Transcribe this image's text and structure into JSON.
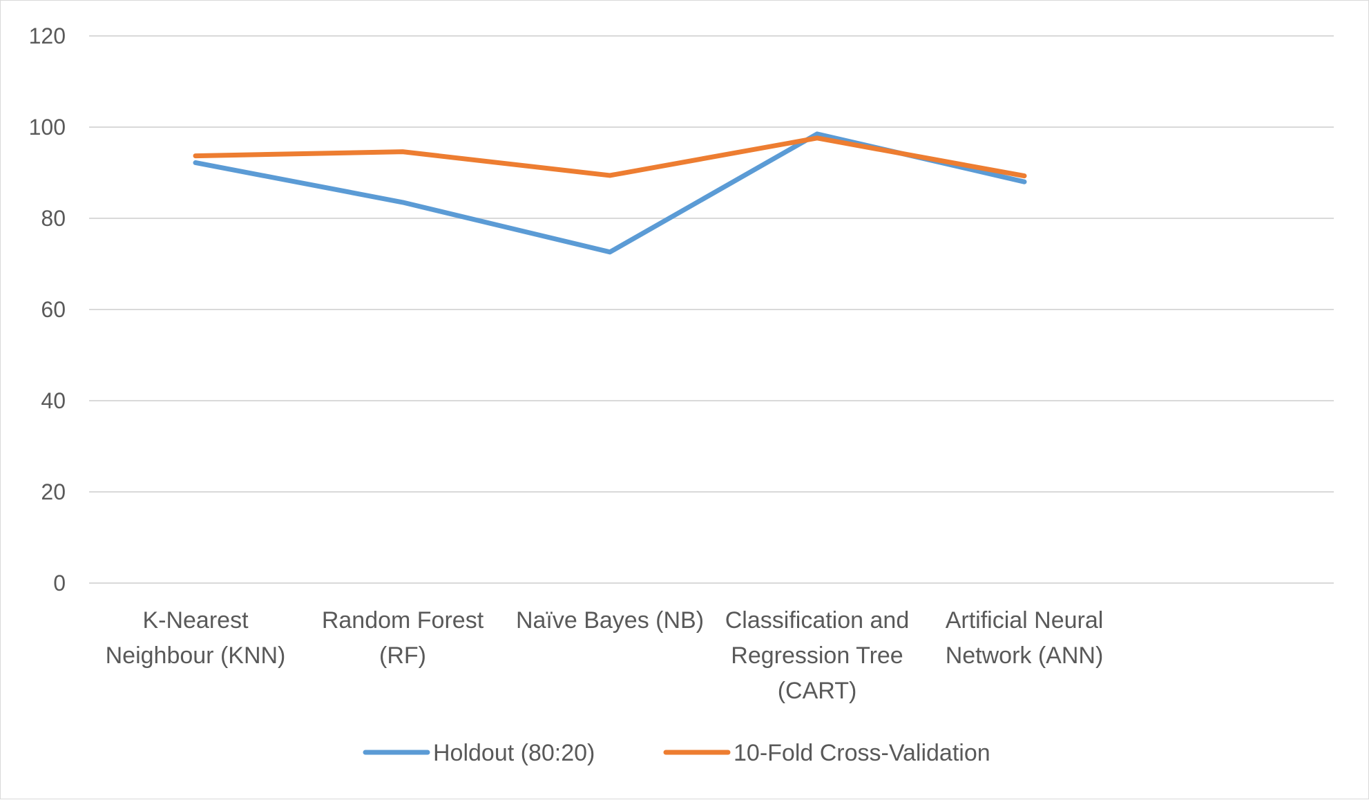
{
  "chart_data": {
    "type": "line",
    "title": "",
    "xlabel": "",
    "ylabel": "",
    "ylim": [
      0,
      120
    ],
    "yticks": [
      0,
      20,
      40,
      60,
      80,
      100,
      120
    ],
    "grid": true,
    "legend_position": "bottom",
    "categories": [
      [
        "K-Nearest",
        "Neighbour (KNN)"
      ],
      [
        "Random Forest",
        "(RF)"
      ],
      [
        "Naïve Bayes (NB)"
      ],
      [
        "Classification and",
        "Regression Tree",
        "(CART)"
      ],
      [
        "Artificial Neural",
        "Network (ANN)"
      ]
    ],
    "series": [
      {
        "name": "Holdout (80:20)",
        "color": "#5b9bd5",
        "values": [
          92.2,
          83.5,
          72.6,
          98.5,
          88.0
        ]
      },
      {
        "name": "10-Fold Cross-Validation",
        "color": "#ed7d31",
        "values": [
          93.7,
          94.6,
          89.4,
          97.6,
          89.3
        ]
      }
    ]
  }
}
